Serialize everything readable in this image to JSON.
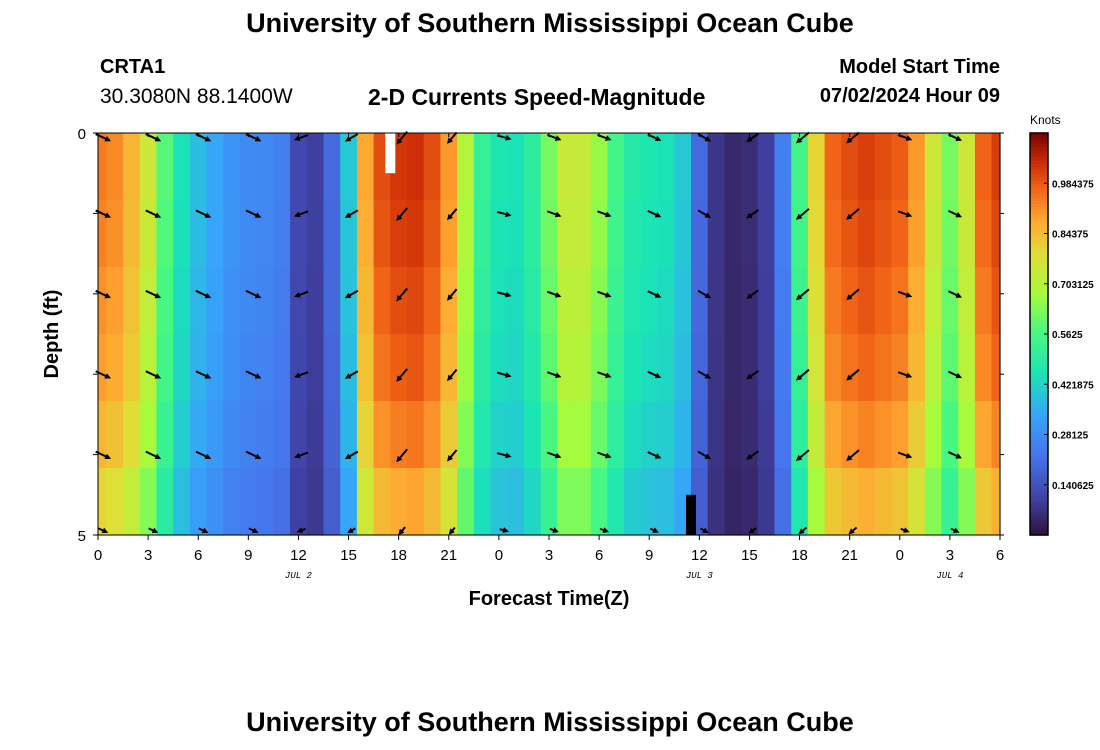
{
  "page": {
    "title_top": "University of Southern Mississippi Ocean Cube",
    "title_bottom": "University of Southern Mississippi Ocean Cube"
  },
  "station": {
    "name": "CRTA1",
    "coordinates": "30.3080N  88.1400W"
  },
  "model": {
    "start_label": "Model Start Time",
    "start_value": "07/02/2024 Hour 09"
  },
  "chart_data": {
    "type": "heatmap",
    "title": "2-D Currents Speed-Magnitude",
    "xlabel": "Forecast Time(Z)",
    "ylabel": "Depth (ft)",
    "x_tick_labels": [
      "0",
      "3",
      "6",
      "9",
      "12",
      "15",
      "18",
      "21",
      "0",
      "3",
      "6",
      "9",
      "12",
      "15",
      "18",
      "21",
      "0",
      "3",
      "6"
    ],
    "day_labels": [
      {
        "text": "JUL 2",
        "at_hour": 12
      },
      {
        "text": "JUL 3",
        "at_hour": 36
      },
      {
        "text": "JUL 4",
        "at_hour": 51
      }
    ],
    "xlim_hours": [
      0,
      54
    ],
    "y_tick_labels": [
      "0",
      "5"
    ],
    "ylim_ft": [
      0,
      5
    ],
    "colorbar": {
      "unit": "Knots",
      "min": 0.0,
      "max": 1.125,
      "tick_labels": [
        "0.140625",
        "0.28125",
        "0.421875",
        "0.5625",
        "0.703125",
        "0.84375",
        "0.984375"
      ],
      "tick_values": [
        0.140625,
        0.28125,
        0.421875,
        0.5625,
        0.703125,
        0.84375,
        0.984375
      ]
    },
    "speed_hours": [
      0,
      1,
      2,
      3,
      4,
      5,
      6,
      7,
      8,
      9,
      10,
      11,
      12,
      13,
      14,
      15,
      16,
      17,
      18,
      19,
      20,
      21,
      22,
      23,
      24,
      25,
      26,
      27,
      28,
      29,
      30,
      31,
      32,
      33,
      34,
      35,
      36,
      37,
      38,
      39,
      40,
      41,
      42,
      43,
      44,
      45,
      46,
      47,
      48,
      49,
      50,
      51,
      52,
      53,
      54
    ],
    "surface_speed_knots": [
      0.94,
      0.92,
      0.86,
      0.75,
      0.58,
      0.45,
      0.38,
      0.34,
      0.3,
      0.28,
      0.27,
      0.25,
      0.12,
      0.1,
      0.2,
      0.4,
      0.88,
      1.0,
      1.03,
      1.04,
      1.0,
      0.9,
      0.7,
      0.52,
      0.46,
      0.45,
      0.5,
      0.62,
      0.74,
      0.74,
      0.66,
      0.55,
      0.48,
      0.46,
      0.45,
      0.4,
      0.2,
      0.08,
      0.05,
      0.06,
      0.1,
      0.25,
      0.55,
      0.8,
      0.97,
      1.0,
      1.02,
      1.0,
      0.98,
      0.9,
      0.75,
      0.62,
      0.75,
      0.97,
      1.02
    ],
    "depth_factors": [
      1.0,
      0.99,
      0.97,
      0.95,
      0.91,
      0.85
    ],
    "data_gaps": [
      {
        "hour_start": 17.2,
        "hour_end": 17.8,
        "depth_start_ft": 0.0,
        "depth_end_ft": 0.5,
        "color": "#ffffff"
      },
      {
        "hour_start": 35.2,
        "hour_end": 35.8,
        "depth_start_ft": 4.5,
        "depth_end_ft": 5.0,
        "color": "#000000"
      }
    ],
    "vector_hours": [
      0,
      3,
      6,
      9,
      12,
      15,
      18,
      21,
      24,
      27,
      30,
      33,
      36,
      39,
      42,
      45,
      48,
      51
    ],
    "vector_depths_ft": [
      0,
      1,
      2,
      3,
      4,
      5
    ],
    "vector_directions_deg": [
      -25,
      -25,
      -25,
      -25,
      200,
      210,
      230,
      230,
      -15,
      -20,
      -20,
      -25,
      -30,
      215,
      220,
      220,
      -20,
      -25
    ],
    "vector_lengths": [
      14,
      14,
      14,
      14,
      12,
      12,
      14,
      12,
      12,
      12,
      12,
      12,
      12,
      12,
      14,
      14,
      12,
      12
    ]
  }
}
